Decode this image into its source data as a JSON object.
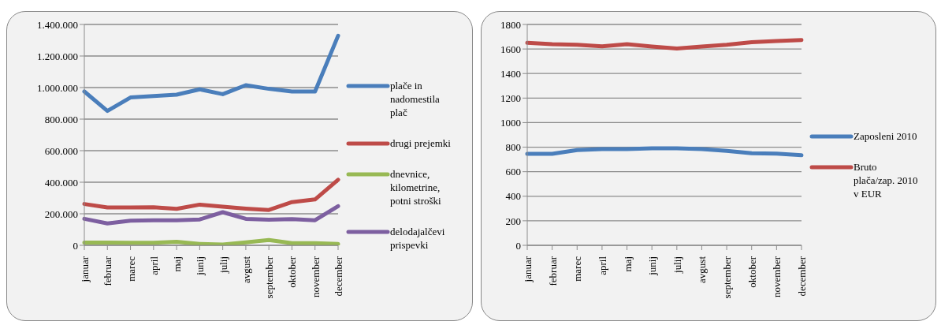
{
  "chart_data": [
    {
      "type": "line",
      "categories": [
        "januar",
        "februar",
        "marec",
        "april",
        "maj",
        "junij",
        "julij",
        "avgust",
        "september",
        "oktober",
        "november",
        "december"
      ],
      "series": [
        {
          "name": "plače in nadomestila plač",
          "color": "#4a7ebb",
          "values": [
            975000,
            852000,
            937000,
            946000,
            955000,
            989000,
            958000,
            1015000,
            992000,
            975000,
            975000,
            1328000
          ]
        },
        {
          "name": "drugi prejemki",
          "color": "#be4b48",
          "values": [
            262000,
            240000,
            240000,
            241000,
            231000,
            258000,
            245000,
            233000,
            224000,
            274000,
            291000,
            416000
          ]
        },
        {
          "name": "dnevnice, kilometrine, potni stroški",
          "color": "#98b954",
          "values": [
            17000,
            17000,
            16000,
            16000,
            22000,
            9000,
            5000,
            19000,
            34000,
            14000,
            14000,
            9000
          ]
        },
        {
          "name": "delodajalčevi prispevki",
          "color": "#7d5fa0",
          "values": [
            168000,
            139000,
            156000,
            159000,
            159000,
            164000,
            210000,
            168000,
            163000,
            166000,
            159000,
            248000
          ]
        }
      ],
      "ylim": [
        0,
        1400000
      ],
      "yticks": [
        0,
        {
          "value": 200000,
          "label": "200.000"
        },
        {
          "value": 400000,
          "label": "400.000"
        },
        {
          "value": 600000,
          "label": "600.000"
        },
        {
          "value": 800000,
          "label": "800.000"
        },
        {
          "value": 1000000,
          "label": "1.000.000"
        },
        {
          "value": 1200000,
          "label": "1.200.000"
        },
        {
          "value": 1400000,
          "label": "1.400.000"
        }
      ],
      "grid": "y",
      "legend": "right",
      "marker": "none",
      "line_style": "solid"
    },
    {
      "type": "line",
      "categories": [
        "januar",
        "februar",
        "marec",
        "april",
        "maj",
        "junij",
        "julij",
        "avgust",
        "september",
        "oktober",
        "november",
        "december"
      ],
      "series": [
        {
          "name": "Zaposleni 2010",
          "color": "#4a7ebb",
          "values": [
            746,
            746,
            776,
            785,
            785,
            790,
            790,
            785,
            770,
            750,
            748,
            734
          ]
        },
        {
          "name": "Bruto plača/zap. 2010  v EUR",
          "color": "#be4b48",
          "values": [
            1650,
            1640,
            1635,
            1622,
            1639,
            1620,
            1604,
            1620,
            1635,
            1655,
            1665,
            1673
          ]
        }
      ],
      "ylim": [
        0,
        1800
      ],
      "yticks": [
        0,
        200,
        400,
        600,
        800,
        1000,
        1200,
        1400,
        1600,
        1800
      ],
      "grid": "y",
      "legend": "right",
      "marker": "none",
      "line_style": "solid"
    }
  ]
}
